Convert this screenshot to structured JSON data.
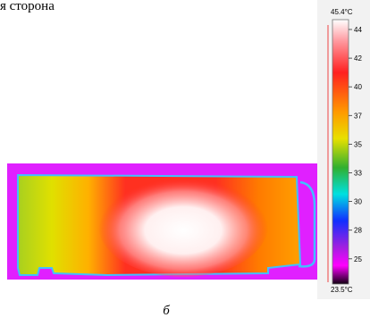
{
  "header": {
    "title": "я сторона"
  },
  "colorbar": {
    "max_label": "45.4°C",
    "min_label": "23.5°C",
    "ticks": [
      "44",
      "42",
      "40",
      "37",
      "35",
      "33",
      "30",
      "28",
      "25"
    ]
  },
  "caption": "б"
}
